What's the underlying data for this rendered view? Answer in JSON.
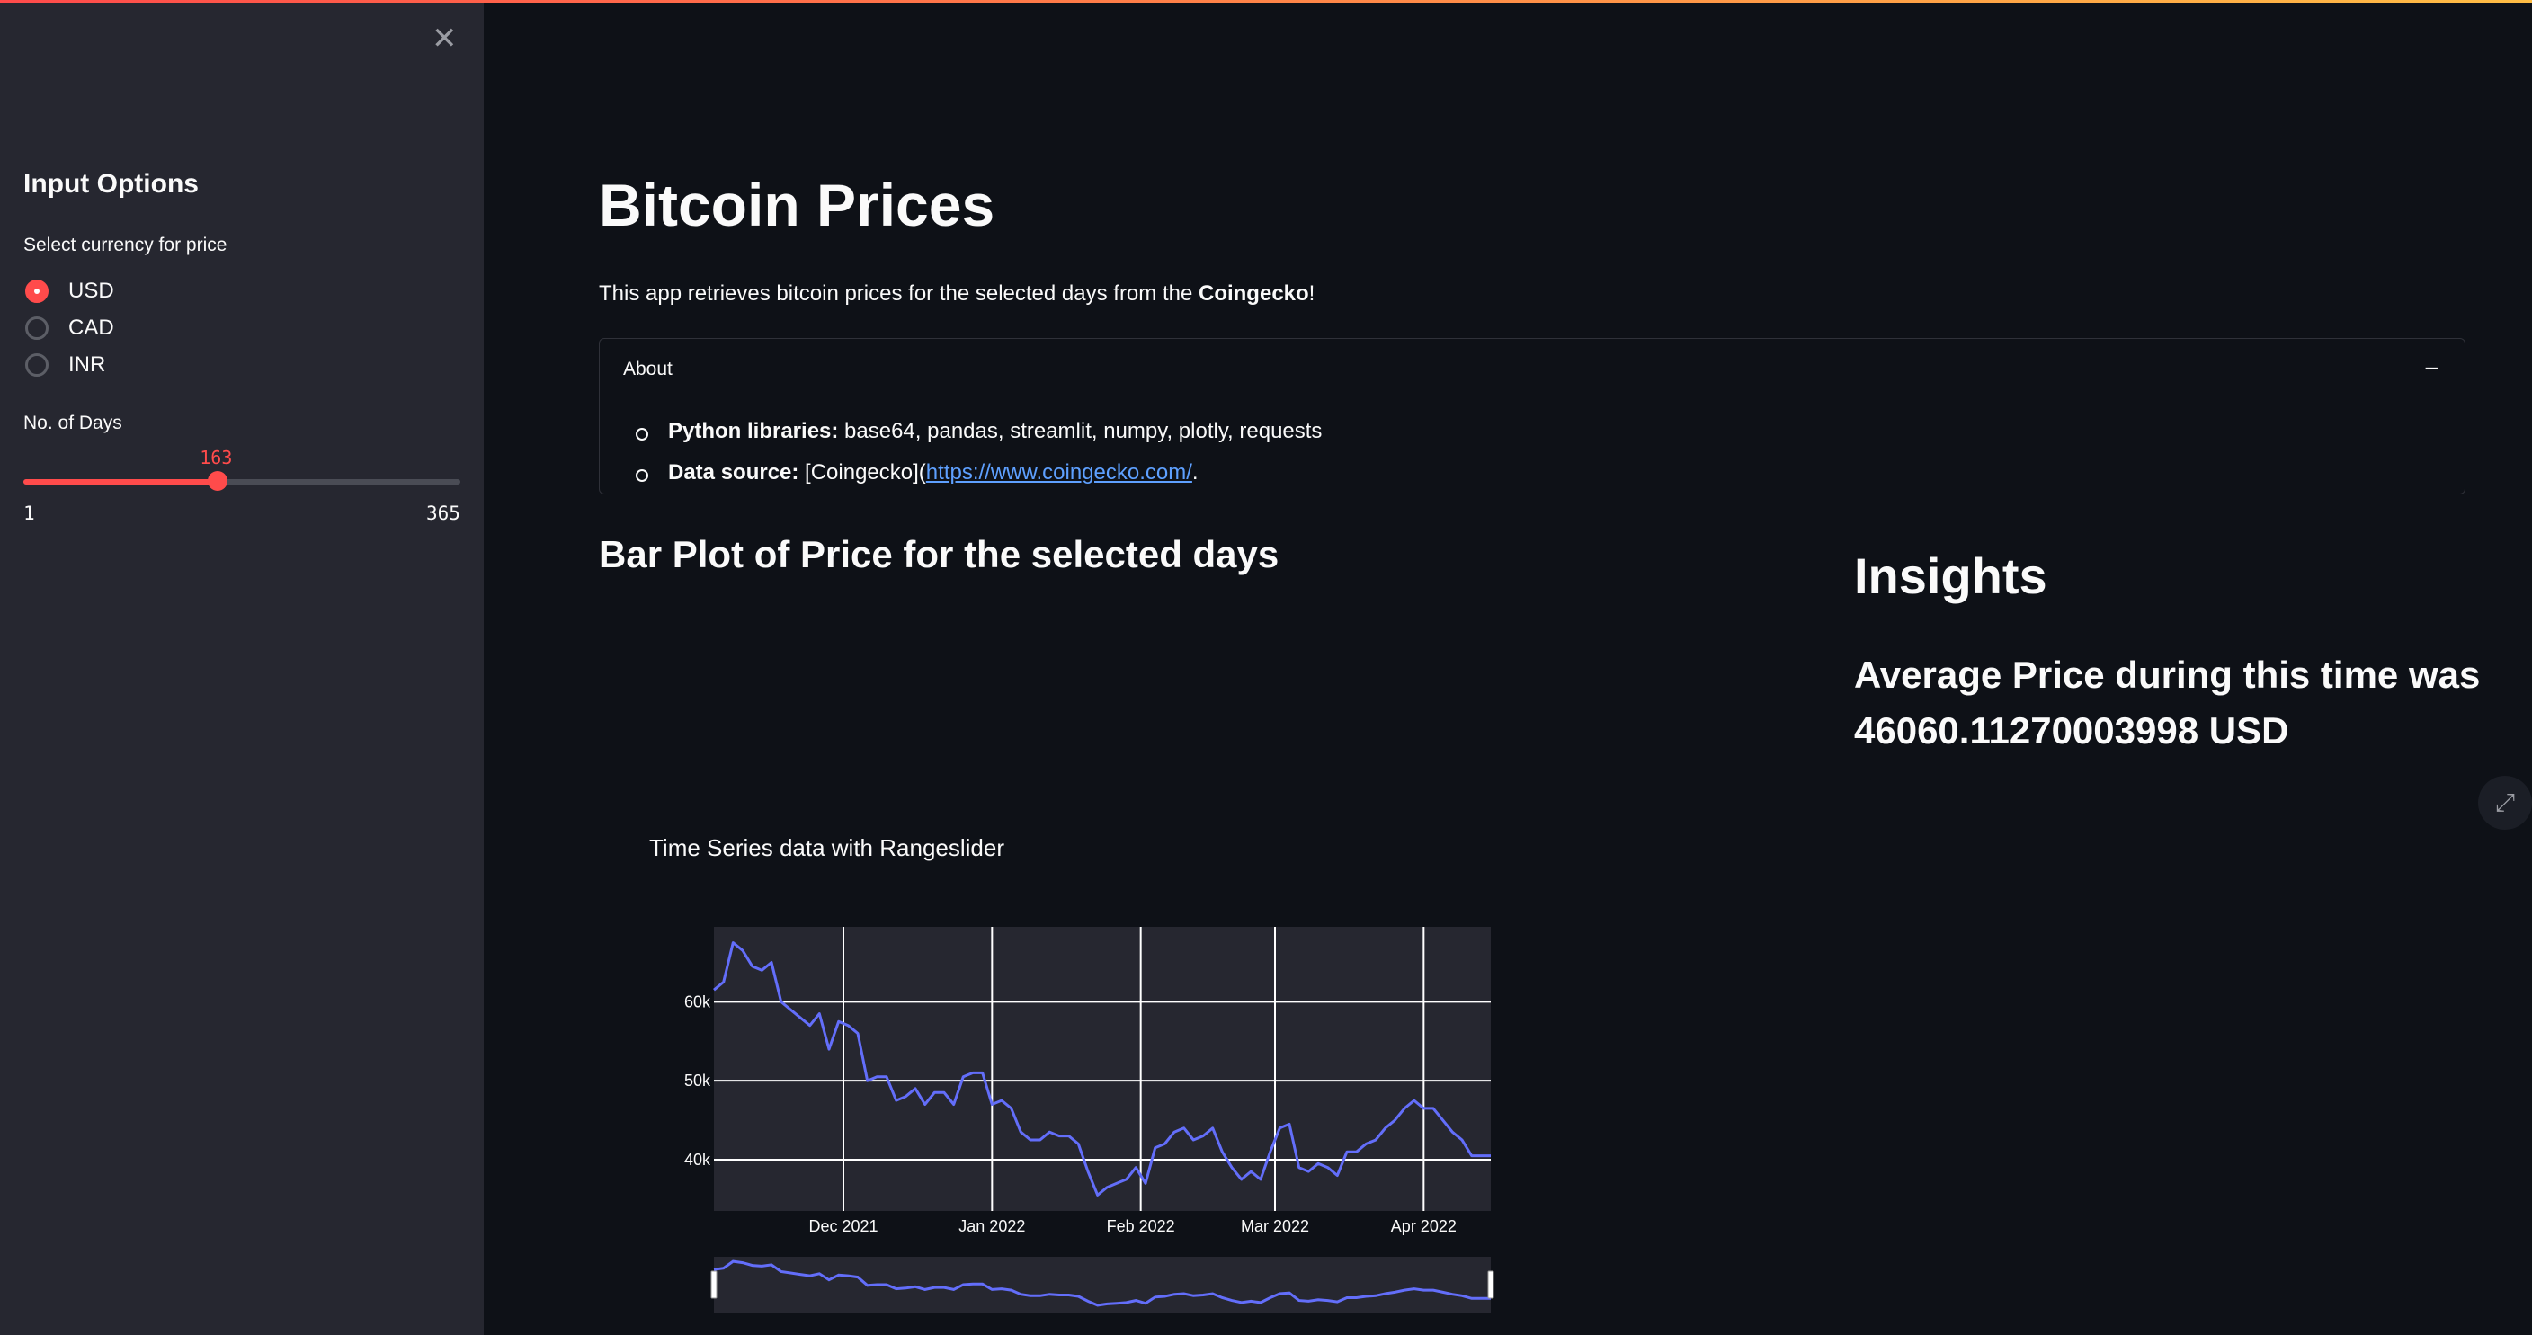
{
  "sidebar": {
    "close_icon": "close-icon",
    "title": "Input Options",
    "currency_label": "Select currency for price",
    "currency_options": [
      "USD",
      "CAD",
      "INR"
    ],
    "selected_currency": "USD",
    "days_label": "No. of Days",
    "days_value": "163",
    "days_min": "1",
    "days_max": "365",
    "days_fraction": 0.445
  },
  "main": {
    "title": "Bitcoin Prices",
    "intro_prefix": "This app retrieves bitcoin prices for the selected days from the ",
    "intro_bold": "Coingecko",
    "intro_suffix": "!",
    "about": {
      "header": "About",
      "toggle": "–",
      "lib_label": "Python libraries:",
      "lib_text": " base64, pandas, streamlit, numpy, plotly, requests",
      "src_label": "Data source:",
      "src_pre": " [Coingecko](",
      "src_link": "https://www.coingecko.com/",
      "src_post": "."
    },
    "bar_plot_heading": "Bar Plot of Price for the selected days",
    "insights_heading": "Insights",
    "insight_text": "Average Price during this time was 46060.11270003998 USD"
  },
  "colors": {
    "accent": "#ff4b4b",
    "line": "#636efa",
    "plot_bg": "#262730"
  },
  "chart_data": {
    "type": "line",
    "title": "Time Series data with Rangeslider",
    "x_tick_labels": [
      "Dec 2021",
      "Jan 2022",
      "Feb 2022",
      "Mar 2022",
      "Apr 2022"
    ],
    "y_tick_labels": [
      "40k",
      "50k",
      "60k"
    ],
    "ylim": [
      33500,
      69500
    ],
    "grid": true,
    "rangeslider": true,
    "series": [
      {
        "x": [
          "2021-11-04",
          "2021-11-06",
          "2021-11-08",
          "2021-11-10",
          "2021-11-12",
          "2021-11-14",
          "2021-11-16",
          "2021-11-18",
          "2021-11-20",
          "2021-11-22",
          "2021-11-24",
          "2021-11-26",
          "2021-11-28",
          "2021-11-30",
          "2021-12-02",
          "2021-12-04",
          "2021-12-06",
          "2021-12-08",
          "2021-12-10",
          "2021-12-12",
          "2021-12-14",
          "2021-12-16",
          "2021-12-18",
          "2021-12-20",
          "2021-12-22",
          "2021-12-24",
          "2021-12-26",
          "2021-12-28",
          "2021-12-30",
          "2022-01-01",
          "2022-01-03",
          "2022-01-05",
          "2022-01-07",
          "2022-01-09",
          "2022-01-11",
          "2022-01-13",
          "2022-01-15",
          "2022-01-17",
          "2022-01-19",
          "2022-01-21",
          "2022-01-23",
          "2022-01-25",
          "2022-01-27",
          "2022-01-29",
          "2022-01-31",
          "2022-02-02",
          "2022-02-04",
          "2022-02-06",
          "2022-02-08",
          "2022-02-10",
          "2022-02-12",
          "2022-02-14",
          "2022-02-16",
          "2022-02-18",
          "2022-02-20",
          "2022-02-22",
          "2022-02-24",
          "2022-02-26",
          "2022-02-28",
          "2022-03-02",
          "2022-03-04",
          "2022-03-06",
          "2022-03-08",
          "2022-03-10",
          "2022-03-12",
          "2022-03-14",
          "2022-03-16",
          "2022-03-18",
          "2022-03-20",
          "2022-03-22",
          "2022-03-24",
          "2022-03-26",
          "2022-03-28",
          "2022-03-30",
          "2022-04-01",
          "2022-04-03",
          "2022-04-05",
          "2022-04-07",
          "2022-04-09",
          "2022-04-11",
          "2022-04-13",
          "2022-04-15"
        ],
        "y": [
          61500,
          62500,
          67500,
          66500,
          64500,
          64000,
          65000,
          60000,
          59000,
          58000,
          57000,
          58500,
          54000,
          57500,
          57000,
          56000,
          50000,
          50500,
          50500,
          47500,
          48000,
          49000,
          47000,
          48500,
          48500,
          47000,
          50500,
          51000,
          51000,
          47000,
          47500,
          46500,
          43500,
          42500,
          42500,
          43500,
          43000,
          43000,
          42000,
          38500,
          35500,
          36500,
          37000,
          37500,
          39000,
          37000,
          41500,
          42000,
          43500,
          44000,
          42500,
          43000,
          44000,
          41000,
          39000,
          37500,
          38500,
          37500,
          41000,
          44000,
          44500,
          39000,
          38500,
          39500,
          39000,
          38000,
          41000,
          41000,
          42000,
          42500,
          44000,
          45000,
          46500,
          47500,
          46500,
          46500,
          45000,
          43500,
          42500,
          40500,
          40500,
          40500
        ]
      }
    ]
  }
}
